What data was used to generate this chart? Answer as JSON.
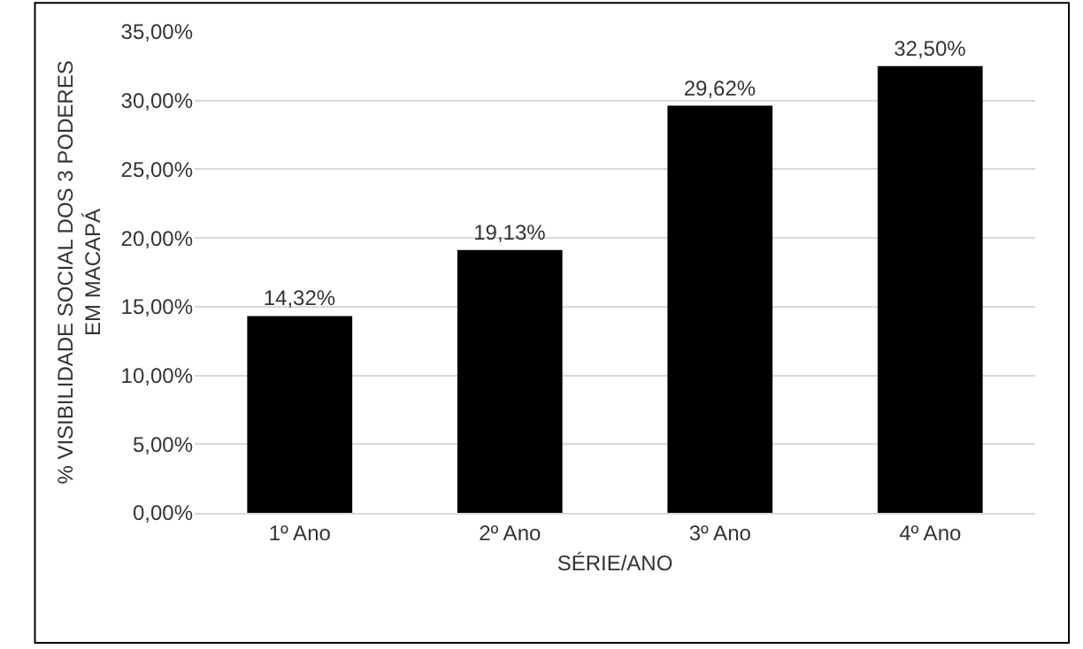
{
  "chart_data": {
    "type": "bar",
    "xlabel": "SÉRIE/ANO",
    "ylabel": "% VISIBILIDADE SOCIAL DOS 3 PODERES\nEM MACAPÁ",
    "categories": [
      "1º Ano",
      "2º Ano",
      "3º Ano",
      "4º Ano"
    ],
    "values": [
      14.32,
      19.13,
      29.62,
      32.5
    ],
    "value_labels": [
      "14,32%",
      "19,13%",
      "29,62%",
      "32,50%"
    ],
    "color": "#000000",
    "ylim": [
      0,
      35
    ],
    "yticks": [
      {
        "value": 0,
        "label": "0,00%"
      },
      {
        "value": 5,
        "label": "5,00%"
      },
      {
        "value": 10,
        "label": "10,00%"
      },
      {
        "value": 15,
        "label": "15,00%"
      },
      {
        "value": 20,
        "label": "20,00%"
      },
      {
        "value": 25,
        "label": "25,00%"
      },
      {
        "value": 30,
        "label": "30,00%"
      },
      {
        "value": 35,
        "label": "35,00%"
      }
    ],
    "grid": "y",
    "legend": false
  }
}
